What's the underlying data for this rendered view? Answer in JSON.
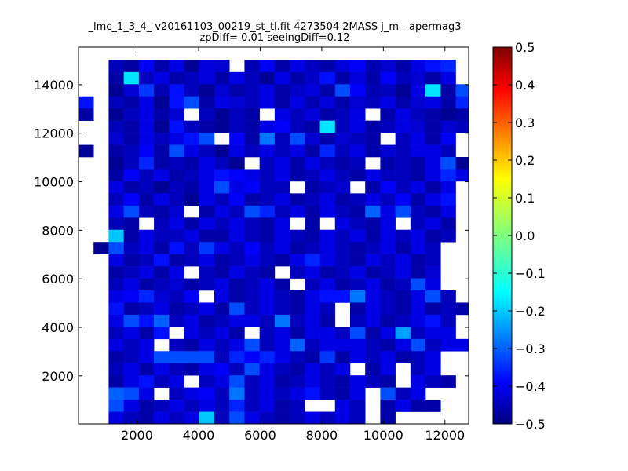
{
  "chart_data": {
    "type": "heatmap",
    "title_line1": "_lmc_1_3_4_ v20161103_00219_st_tl.fit 4273504 2MASS j_m - apermag3",
    "title_line2": "zpDiff= 0.01 seeingDiff=0.12",
    "xlabel": "",
    "ylabel": "",
    "xlim": [
      100,
      12770
    ],
    "ylim": [
      20,
      15550
    ],
    "x_ticks": [
      2000,
      4000,
      6000,
      8000,
      10000,
      12000
    ],
    "x_tick_labels": [
      "2000",
      "4000",
      "6000",
      "8000",
      "10000",
      "12000"
    ],
    "y_ticks": [
      2000,
      4000,
      6000,
      8000,
      10000,
      12000,
      14000
    ],
    "y_tick_labels": [
      "2000",
      "4000",
      "6000",
      "8000",
      "10000",
      "12000",
      "14000"
    ],
    "bin_width": 490,
    "bin_height": 500,
    "x_bins_start": 100,
    "y_bins_start": 20,
    "colormap": "jet",
    "colorbar": {
      "vmin": -0.5,
      "vmax": 0.5,
      "ticks": [
        0.5,
        0.4,
        0.3,
        0.2,
        0.1,
        0.0,
        -0.1,
        -0.2,
        -0.3,
        -0.4,
        -0.5
      ],
      "tick_labels": [
        "0.5",
        "0.4",
        "0.3",
        "0.2",
        "0.1",
        "0.0",
        "−0.1",
        "−0.2",
        "−0.3",
        "−0.4",
        "−0.5"
      ]
    },
    "rows_note": "each row is one y-bin from top (y=15550) to bottom; null = empty bin",
    "values": [
      [
        null,
        null,
        -0.44,
        -0.47,
        -0.38,
        -0.46,
        -0.4,
        -0.48,
        -0.41,
        -0.42,
        null,
        -0.45,
        -0.38,
        -0.46,
        -0.4,
        -0.44,
        -0.46,
        -0.41,
        -0.38,
        -0.45,
        -0.42,
        -0.46,
        -0.4,
        -0.36,
        -0.34,
        null
      ],
      [
        null,
        null,
        -0.46,
        -0.15,
        -0.44,
        -0.4,
        -0.46,
        -0.44,
        -0.41,
        -0.46,
        -0.4,
        -0.44,
        -0.48,
        -0.4,
        -0.46,
        -0.43,
        -0.36,
        -0.46,
        -0.41,
        -0.46,
        -0.38,
        -0.44,
        -0.42,
        -0.46,
        -0.4,
        null
      ],
      [
        null,
        null,
        -0.48,
        -0.42,
        -0.32,
        -0.45,
        -0.36,
        -0.44,
        -0.48,
        -0.42,
        -0.46,
        -0.44,
        -0.4,
        -0.46,
        -0.43,
        -0.41,
        -0.46,
        -0.3,
        -0.38,
        -0.45,
        -0.44,
        -0.48,
        -0.4,
        -0.15,
        -0.46,
        -0.3
      ],
      [
        -0.36,
        null,
        -0.44,
        -0.46,
        -0.4,
        -0.48,
        -0.36,
        -0.3,
        -0.46,
        -0.4,
        -0.42,
        -0.44,
        -0.4,
        -0.46,
        -0.4,
        -0.45,
        -0.41,
        -0.46,
        -0.42,
        -0.44,
        -0.4,
        -0.46,
        -0.42,
        -0.4,
        -0.46,
        -0.34
      ],
      [
        -0.46,
        null,
        -0.48,
        -0.44,
        -0.4,
        -0.46,
        -0.42,
        null,
        -0.44,
        -0.48,
        -0.44,
        -0.46,
        null,
        -0.4,
        -0.44,
        -0.41,
        -0.46,
        -0.44,
        -0.4,
        null,
        -0.46,
        -0.4,
        -0.44,
        -0.46,
        -0.48,
        -0.46
      ],
      [
        null,
        null,
        -0.44,
        -0.46,
        -0.4,
        -0.48,
        -0.36,
        -0.44,
        -0.46,
        -0.48,
        -0.44,
        -0.46,
        -0.4,
        -0.38,
        -0.44,
        -0.46,
        -0.15,
        -0.44,
        -0.4,
        -0.46,
        -0.44,
        -0.4,
        -0.42,
        -0.46,
        -0.42,
        -0.44
      ],
      [
        null,
        null,
        -0.42,
        -0.46,
        -0.4,
        -0.44,
        -0.4,
        -0.36,
        -0.3,
        null,
        -0.38,
        -0.46,
        -0.26,
        -0.44,
        -0.3,
        -0.42,
        -0.46,
        -0.42,
        -0.44,
        -0.46,
        null,
        -0.44,
        -0.4,
        -0.46,
        -0.38,
        null
      ],
      [
        -0.48,
        null,
        -0.46,
        -0.44,
        -0.38,
        -0.46,
        -0.3,
        -0.4,
        -0.44,
        -0.48,
        -0.4,
        -0.44,
        -0.4,
        -0.44,
        -0.4,
        -0.46,
        -0.34,
        -0.44,
        -0.4,
        -0.46,
        -0.42,
        -0.44,
        -0.4,
        -0.4,
        -0.44,
        null
      ],
      [
        null,
        null,
        -0.48,
        -0.44,
        -0.34,
        -0.46,
        -0.44,
        -0.46,
        -0.4,
        -0.44,
        -0.48,
        null,
        -0.44,
        -0.4,
        -0.46,
        -0.4,
        -0.44,
        -0.46,
        -0.44,
        null,
        -0.46,
        -0.44,
        -0.46,
        -0.4,
        -0.3,
        -0.48
      ],
      [
        null,
        null,
        -0.46,
        -0.38,
        -0.44,
        -0.4,
        -0.46,
        -0.44,
        -0.4,
        -0.36,
        -0.38,
        -0.4,
        -0.44,
        -0.4,
        -0.46,
        -0.44,
        -0.4,
        -0.44,
        -0.46,
        -0.4,
        -0.44,
        -0.44,
        -0.46,
        -0.4,
        -0.34,
        -0.4
      ],
      [
        null,
        null,
        -0.4,
        -0.46,
        -0.44,
        -0.48,
        -0.44,
        -0.46,
        -0.4,
        -0.3,
        -0.4,
        -0.38,
        -0.44,
        -0.44,
        null,
        -0.46,
        -0.44,
        -0.42,
        null,
        -0.46,
        -0.38,
        -0.44,
        -0.4,
        -0.46,
        -0.4,
        null
      ],
      [
        null,
        null,
        -0.44,
        -0.38,
        -0.46,
        -0.4,
        -0.44,
        -0.48,
        -0.4,
        -0.44,
        -0.38,
        -0.46,
        -0.44,
        -0.4,
        -0.46,
        -0.44,
        -0.4,
        -0.46,
        -0.44,
        -0.4,
        -0.44,
        -0.38,
        -0.46,
        -0.4,
        -0.36,
        null
      ],
      [
        null,
        null,
        -0.4,
        -0.3,
        -0.44,
        -0.46,
        -0.42,
        null,
        -0.46,
        -0.4,
        -0.44,
        -0.3,
        -0.34,
        -0.44,
        -0.4,
        -0.46,
        -0.4,
        -0.44,
        -0.46,
        -0.28,
        -0.4,
        -0.3,
        -0.44,
        -0.46,
        -0.4,
        null
      ],
      [
        null,
        null,
        -0.44,
        -0.46,
        null,
        -0.44,
        -0.4,
        -0.46,
        -0.4,
        -0.44,
        -0.4,
        -0.44,
        -0.46,
        -0.4,
        null,
        -0.46,
        null,
        -0.4,
        -0.44,
        -0.46,
        -0.4,
        null,
        -0.44,
        -0.4,
        -0.46,
        null
      ],
      [
        null,
        null,
        -0.18,
        -0.46,
        -0.4,
        -0.44,
        -0.44,
        -0.4,
        -0.46,
        -0.46,
        -0.4,
        -0.44,
        -0.46,
        -0.4,
        -0.44,
        -0.46,
        -0.4,
        -0.44,
        -0.4,
        -0.46,
        -0.4,
        -0.44,
        -0.4,
        -0.46,
        -0.44,
        null
      ],
      [
        null,
        -0.48,
        -0.3,
        -0.44,
        -0.4,
        -0.46,
        -0.36,
        -0.44,
        -0.32,
        -0.4,
        -0.44,
        -0.38,
        -0.44,
        -0.4,
        -0.46,
        -0.44,
        -0.4,
        -0.44,
        -0.46,
        -0.44,
        -0.4,
        -0.46,
        -0.4,
        -0.44,
        null,
        null
      ],
      [
        null,
        null,
        -0.4,
        -0.46,
        -0.44,
        -0.36,
        -0.46,
        -0.44,
        -0.4,
        -0.46,
        -0.44,
        -0.4,
        -0.44,
        -0.46,
        -0.4,
        -0.34,
        -0.4,
        -0.44,
        -0.46,
        -0.4,
        -0.44,
        -0.4,
        -0.46,
        -0.44,
        null,
        null
      ],
      [
        null,
        null,
        -0.46,
        -0.44,
        -0.4,
        -0.46,
        -0.4,
        null,
        -0.44,
        -0.46,
        -0.4,
        -0.44,
        -0.46,
        null,
        -0.44,
        -0.4,
        -0.46,
        -0.44,
        -0.4,
        -0.46,
        -0.44,
        -0.4,
        -0.46,
        -0.42,
        null,
        null
      ],
      [
        null,
        null,
        -0.44,
        -0.4,
        -0.46,
        -0.44,
        -0.42,
        -0.46,
        -0.44,
        -0.4,
        -0.46,
        -0.44,
        -0.4,
        -0.46,
        null,
        -0.44,
        -0.4,
        -0.46,
        -0.44,
        -0.4,
        -0.46,
        -0.44,
        -0.3,
        -0.4,
        null,
        null
      ],
      [
        null,
        null,
        -0.4,
        -0.38,
        -0.34,
        -0.42,
        -0.44,
        -0.38,
        null,
        -0.4,
        -0.46,
        -0.44,
        -0.4,
        -0.44,
        -0.46,
        -0.4,
        -0.36,
        -0.36,
        -0.26,
        -0.4,
        -0.44,
        -0.46,
        -0.4,
        -0.3,
        -0.44,
        null
      ],
      [
        null,
        null,
        -0.36,
        -0.46,
        -0.44,
        -0.4,
        -0.46,
        -0.44,
        -0.4,
        -0.46,
        -0.3,
        -0.44,
        -0.4,
        -0.44,
        -0.46,
        -0.4,
        -0.44,
        null,
        -0.46,
        -0.4,
        -0.44,
        -0.46,
        -0.4,
        -0.46,
        -0.44,
        -0.46
      ],
      [
        null,
        null,
        -0.4,
        -0.3,
        -0.36,
        -0.28,
        -0.44,
        -0.4,
        -0.46,
        -0.44,
        -0.4,
        -0.4,
        -0.44,
        -0.26,
        -0.44,
        -0.4,
        -0.46,
        null,
        -0.44,
        -0.4,
        -0.46,
        -0.44,
        -0.4,
        -0.36,
        -0.44,
        null
      ],
      [
        null,
        null,
        -0.44,
        -0.4,
        -0.46,
        -0.36,
        null,
        -0.4,
        -0.44,
        -0.4,
        -0.46,
        null,
        -0.44,
        -0.4,
        -0.46,
        -0.4,
        -0.4,
        -0.44,
        -0.3,
        -0.46,
        -0.4,
        -0.22,
        -0.44,
        -0.4,
        -0.4,
        null
      ],
      [
        null,
        null,
        -0.4,
        -0.44,
        -0.4,
        null,
        -0.44,
        -0.46,
        -0.4,
        -0.44,
        -0.4,
        -0.3,
        -0.44,
        -0.4,
        -0.28,
        -0.44,
        -0.4,
        -0.4,
        -0.4,
        -0.44,
        -0.46,
        -0.4,
        -0.3,
        -0.44,
        -0.4,
        -0.4
      ],
      [
        null,
        null,
        -0.46,
        -0.44,
        -0.4,
        -0.3,
        -0.3,
        -0.3,
        -0.3,
        -0.44,
        -0.34,
        -0.38,
        -0.34,
        -0.4,
        -0.44,
        -0.46,
        -0.32,
        -0.46,
        -0.4,
        -0.44,
        -0.4,
        -0.46,
        -0.44,
        -0.4,
        null,
        null
      ],
      [
        null,
        null,
        -0.44,
        -0.4,
        -0.46,
        -0.4,
        -0.44,
        -0.46,
        -0.4,
        -0.38,
        -0.44,
        -0.3,
        -0.4,
        -0.44,
        -0.46,
        -0.4,
        -0.44,
        -0.4,
        null,
        -0.46,
        -0.4,
        null,
        -0.44,
        -0.4,
        null,
        null
      ],
      [
        null,
        null,
        -0.46,
        -0.4,
        -0.36,
        -0.44,
        -0.4,
        null,
        -0.44,
        -0.4,
        -0.3,
        -0.44,
        -0.4,
        -0.46,
        -0.44,
        -0.4,
        -0.44,
        -0.46,
        -0.4,
        -0.44,
        -0.46,
        null,
        -0.4,
        -0.44,
        -0.46,
        null
      ],
      [
        null,
        null,
        -0.28,
        -0.3,
        -0.4,
        null,
        -0.44,
        -0.4,
        -0.38,
        -0.44,
        -0.26,
        -0.44,
        -0.4,
        -0.44,
        -0.4,
        -0.36,
        -0.44,
        -0.46,
        -0.4,
        null,
        -0.3,
        -0.44,
        -0.4,
        null,
        null,
        null
      ],
      [
        null,
        null,
        -0.3,
        -0.4,
        -0.46,
        -0.44,
        -0.4,
        -0.44,
        -0.4,
        -0.44,
        -0.34,
        -0.44,
        -0.4,
        -0.46,
        -0.44,
        null,
        null,
        -0.4,
        -0.44,
        null,
        -0.46,
        -0.4,
        -0.46,
        -0.46,
        null,
        null
      ],
      [
        null,
        null,
        -0.4,
        -0.44,
        -0.46,
        -0.4,
        -0.44,
        -0.4,
        -0.18,
        -0.44,
        -0.3,
        -0.4,
        -0.44,
        -0.46,
        -0.44,
        -0.4,
        -0.44,
        -0.4,
        -0.44,
        null,
        -0.46,
        null,
        null,
        null,
        null,
        null
      ]
    ]
  }
}
